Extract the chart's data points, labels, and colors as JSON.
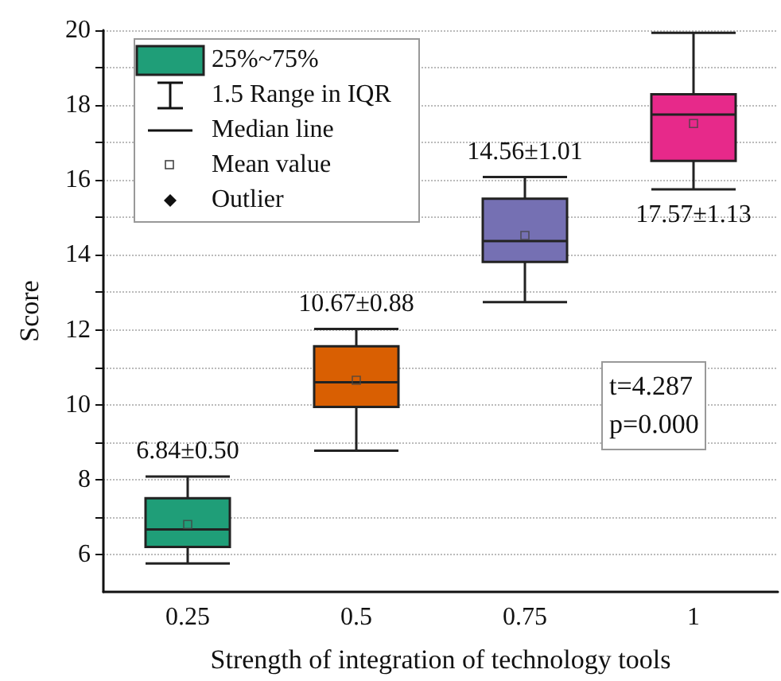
{
  "chart_data": {
    "type": "box",
    "xlabel": "Strength of integration of technology tools",
    "ylabel": "Score",
    "categories": [
      "0.25",
      "0.5",
      "0.75",
      "1"
    ],
    "colors": [
      "#1f9e78",
      "#d95f02",
      "#7570b3",
      "#e7298a"
    ],
    "boxes": [
      {
        "low": 5.76,
        "q1": 6.2,
        "median": 6.67,
        "q3": 7.5,
        "high": 8.08,
        "mean": 6.8
      },
      {
        "low": 8.77,
        "q1": 9.94,
        "median": 10.6,
        "q3": 11.56,
        "high": 12.02,
        "mean": 10.65
      },
      {
        "low": 12.74,
        "q1": 13.81,
        "median": 14.37,
        "q3": 15.5,
        "high": 16.08,
        "mean": 14.52
      },
      {
        "low": 15.75,
        "q1": 16.51,
        "median": 17.75,
        "q3": 18.29,
        "high": 19.93,
        "mean": 17.51
      }
    ],
    "ylim": [
      5,
      20
    ],
    "yticks": [
      6,
      {
        "value": 7,
        "label": null
      },
      8,
      {
        "value": 9,
        "label": null
      },
      10,
      {
        "value": 11,
        "label": null
      },
      12,
      {
        "value": 13,
        "label": null
      },
      14,
      {
        "value": 15,
        "label": null
      },
      16,
      {
        "value": 17,
        "label": null
      },
      18,
      {
        "value": 19,
        "label": null
      },
      20
    ],
    "grid": true,
    "annotations": [
      "6.84±0.50",
      "10.67±0.88",
      "14.56±1.01",
      "17.57±1.13",
      "25%~75%",
      "1.5 Range in IQR",
      "Median line",
      "Mean value",
      "Outlier",
      "t=4.287\np=0.000"
    ]
  }
}
